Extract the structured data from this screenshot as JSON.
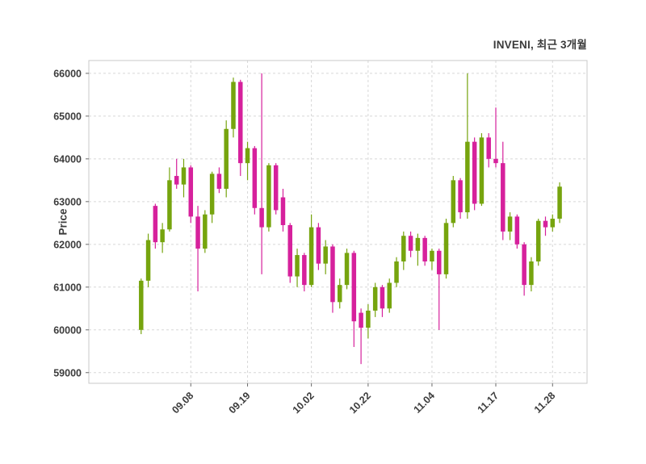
{
  "chart_data": {
    "type": "candlestick",
    "title": "INVENI, 최근 3개월",
    "ylabel": "Price",
    "ylim": [
      58750,
      66300
    ],
    "y_ticks": [
      59000,
      60000,
      61000,
      62000,
      63000,
      64000,
      65000,
      66000
    ],
    "x_ticks": [
      {
        "label": "09.08",
        "index": 7
      },
      {
        "label": "09.19",
        "index": 15
      },
      {
        "label": "10.02",
        "index": 24
      },
      {
        "label": "10.22",
        "index": 32
      },
      {
        "label": "11.04",
        "index": 41
      },
      {
        "label": "11.17",
        "index": 50
      },
      {
        "label": "11.28",
        "index": 58
      }
    ],
    "grid": "dashed",
    "legend": "none",
    "up_color": "#76a40e",
    "down_color": "#d6219c",
    "candles_ohlc": [
      [
        60000,
        61200,
        59900,
        61150
      ],
      [
        61150,
        62250,
        61000,
        62100
      ],
      [
        62900,
        62950,
        61900,
        62050
      ],
      [
        62050,
        62500,
        61800,
        62350
      ],
      [
        62350,
        63800,
        62300,
        63500
      ],
      [
        63600,
        64000,
        63300,
        63400
      ],
      [
        63400,
        64000,
        63100,
        63800
      ],
      [
        63800,
        63850,
        62500,
        62650
      ],
      [
        62650,
        62900,
        60900,
        61900
      ],
      [
        61900,
        62800,
        61800,
        62700
      ],
      [
        62700,
        63700,
        62500,
        63650
      ],
      [
        63650,
        63800,
        63200,
        63300
      ],
      [
        63300,
        64900,
        63100,
        64700
      ],
      [
        64700,
        65900,
        64500,
        65800
      ],
      [
        65800,
        65850,
        63600,
        63900
      ],
      [
        63900,
        64400,
        63500,
        64250
      ],
      [
        64250,
        64300,
        62700,
        62850
      ],
      [
        62850,
        66000,
        61300,
        62400
      ],
      [
        62400,
        63900,
        62300,
        63850
      ],
      [
        63850,
        63900,
        62700,
        62800
      ],
      [
        63100,
        63300,
        62300,
        62450
      ],
      [
        62450,
        62500,
        61100,
        61250
      ],
      [
        61250,
        61900,
        61000,
        61750
      ],
      [
        61750,
        61800,
        60900,
        61050
      ],
      [
        61050,
        62700,
        61000,
        62400
      ],
      [
        62400,
        62500,
        61400,
        61550
      ],
      [
        61550,
        62100,
        61300,
        61950
      ],
      [
        61950,
        62000,
        60400,
        60650
      ],
      [
        60650,
        61200,
        60500,
        61050
      ],
      [
        61050,
        61900,
        60950,
        61800
      ],
      [
        61800,
        61850,
        59600,
        60200
      ],
      [
        60400,
        60500,
        59200,
        60050
      ],
      [
        60050,
        60600,
        59800,
        60450
      ],
      [
        60450,
        61100,
        60300,
        61000
      ],
      [
        61000,
        61050,
        60300,
        60500
      ],
      [
        60500,
        61200,
        60400,
        61100
      ],
      [
        61100,
        61700,
        61000,
        61600
      ],
      [
        61600,
        62300,
        61400,
        62200
      ],
      [
        62200,
        62300,
        61700,
        61850
      ],
      [
        61850,
        62250,
        61500,
        62150
      ],
      [
        62150,
        62200,
        61500,
        61600
      ],
      [
        61600,
        61900,
        61400,
        61850
      ],
      [
        61850,
        61900,
        60000,
        61300
      ],
      [
        61300,
        62600,
        61200,
        62500
      ],
      [
        62500,
        63600,
        62400,
        63500
      ],
      [
        63500,
        63550,
        62600,
        62750
      ],
      [
        62750,
        66000,
        62600,
        64400
      ],
      [
        64400,
        64500,
        62800,
        62950
      ],
      [
        62950,
        64600,
        62900,
        64500
      ],
      [
        64500,
        64600,
        63800,
        64000
      ],
      [
        64000,
        65200,
        63800,
        63900
      ],
      [
        63900,
        64400,
        62100,
        62300
      ],
      [
        62300,
        62750,
        62100,
        62650
      ],
      [
        62650,
        62700,
        61900,
        62000
      ],
      [
        62000,
        62050,
        60800,
        61050
      ],
      [
        61050,
        61700,
        60900,
        61600
      ],
      [
        61600,
        62600,
        61500,
        62550
      ],
      [
        62550,
        62650,
        62200,
        62400
      ],
      [
        62400,
        62700,
        62300,
        62600
      ],
      [
        62600,
        63450,
        62500,
        63350
      ]
    ]
  }
}
